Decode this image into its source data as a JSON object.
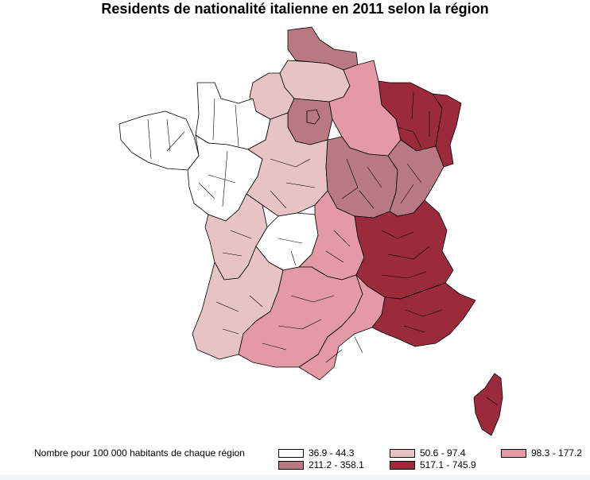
{
  "title": "Residents de nationalité italienne en 2011 selon la région",
  "legend": {
    "title": "Nombre pour 100 000 habitants de chaque région",
    "classes": [
      {
        "label": "36.9 - 44.3",
        "color": "#ffffff"
      },
      {
        "label": "50.6 - 97.4",
        "color": "#e8c3c6"
      },
      {
        "label": "98.3 - 177.2",
        "color": "#e39aa6"
      },
      {
        "label": "211.2 - 358.1",
        "color": "#b97982"
      },
      {
        "label": "517.1 - 745.9",
        "color": "#9b2a3c"
      }
    ]
  },
  "colors": {
    "border": "#000000"
  },
  "map_regions": [
    {
      "name": "Nord-Pas-de-Calais",
      "class": 3
    },
    {
      "name": "Picardie",
      "class": 1
    },
    {
      "name": "Haute-Normandie",
      "class": 1
    },
    {
      "name": "Île-de-France",
      "class": 3
    },
    {
      "name": "Champagne-Ardenne",
      "class": 2
    },
    {
      "name": "Lorraine",
      "class": 4
    },
    {
      "name": "Alsace",
      "class": 4
    },
    {
      "name": "Bretagne",
      "class": 0
    },
    {
      "name": "Basse-Normandie",
      "class": 0
    },
    {
      "name": "Pays de la Loire",
      "class": 0
    },
    {
      "name": "Centre",
      "class": 1
    },
    {
      "name": "Bourgogne",
      "class": 3
    },
    {
      "name": "Franche-Comté",
      "class": 3
    },
    {
      "name": "Poitou-Charentes",
      "class": 1
    },
    {
      "name": "Limousin",
      "class": 0
    },
    {
      "name": "Auvergne",
      "class": 2
    },
    {
      "name": "Rhône-Alpes",
      "class": 4
    },
    {
      "name": "Aquitaine",
      "class": 1
    },
    {
      "name": "Midi-Pyrénées",
      "class": 2
    },
    {
      "name": "Languedoc-Roussillon",
      "class": 2
    },
    {
      "name": "Provence-Alpes-Côte d'Azur",
      "class": 4
    },
    {
      "name": "Corse",
      "class": 4
    }
  ]
}
